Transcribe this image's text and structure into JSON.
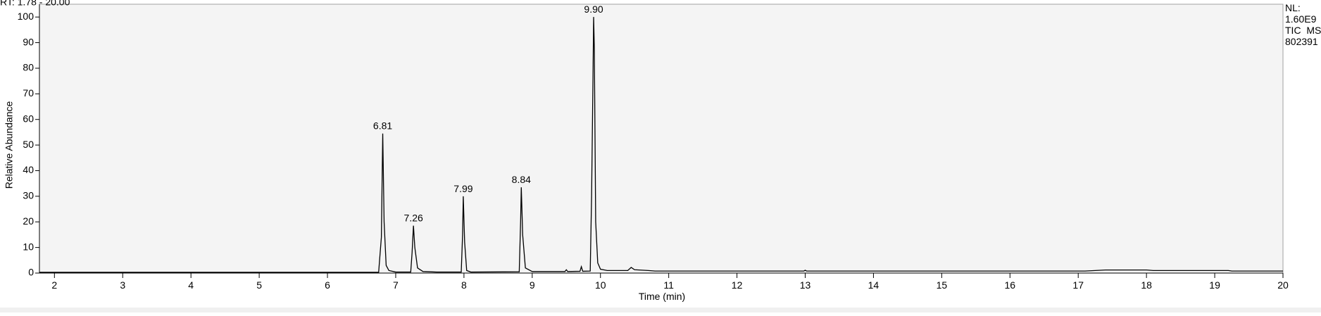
{
  "chart_data": {
    "type": "line",
    "title": "RT: 1.78 - 20.00",
    "x_label": "Time (min)",
    "y_label": "Relative Abundance",
    "annotations": [
      "NL:",
      "1.60E9",
      "TIC  MS",
      "802391"
    ],
    "xlim": [
      1.78,
      20
    ],
    "xticks": [
      2,
      3,
      4,
      5,
      6,
      7,
      8,
      9,
      10,
      11,
      12,
      13,
      14,
      15,
      16,
      17,
      18,
      19,
      20
    ],
    "ylim": [
      0,
      105
    ],
    "yticks": [
      0,
      10,
      20,
      30,
      40,
      50,
      60,
      70,
      80,
      90,
      100
    ],
    "peak_labels": [
      6.81,
      7.26,
      7.99,
      8.84,
      {
        "value": 9.9,
        "label": "9.90"
      }
    ],
    "x": [
      1.78,
      6.75,
      6.79,
      6.81,
      6.83,
      6.86,
      6.9,
      7.0,
      7.22,
      7.24,
      7.26,
      7.28,
      7.32,
      7.4,
      7.6,
      7.96,
      7.98,
      7.99,
      8.01,
      8.04,
      8.1,
      8.81,
      8.83,
      8.84,
      8.86,
      8.9,
      9.0,
      9.48,
      9.5,
      9.52,
      9.7,
      9.72,
      9.74,
      9.85,
      9.87,
      9.89,
      9.9,
      9.91,
      9.93,
      9.96,
      10.0,
      10.1,
      10.4,
      10.45,
      10.5,
      10.7,
      10.8,
      12.98,
      13.0,
      13.02,
      17.1,
      17.4,
      18.0,
      18.1,
      19.2,
      19.25,
      20
    ],
    "series": [
      {
        "color": "#000000",
        "values": [
          0.3,
          0.3,
          14,
          54.5,
          20,
          3,
          1,
          0.4,
          0.4,
          8,
          18.5,
          10,
          2,
          0.6,
          0.4,
          0.4,
          15,
          30,
          12,
          1,
          0.4,
          0.5,
          20,
          33.5,
          15,
          2,
          0.6,
          0.6,
          1.3,
          0.6,
          0.7,
          2.5,
          0.7,
          0.8,
          30,
          75,
          100,
          88,
          20,
          4,
          1.5,
          1,
          1,
          2.2,
          1.3,
          1,
          0.8,
          0.8,
          1.1,
          0.8,
          0.8,
          1.2,
          1.2,
          1.0,
          1.0,
          0.8,
          0.8
        ]
      }
    ]
  }
}
